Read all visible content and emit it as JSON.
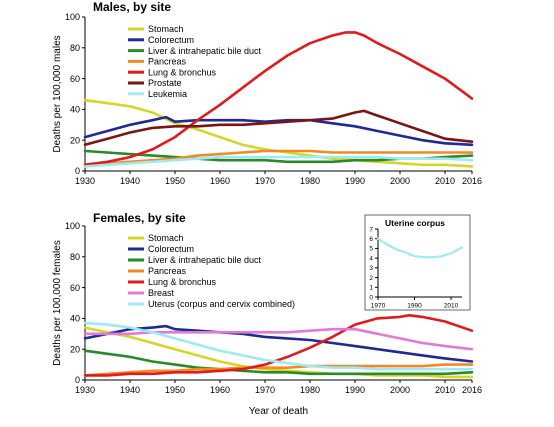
{
  "chart_data": [
    {
      "type": "line",
      "title": "Males, by site",
      "ylabel": "Deaths per 100,000 males",
      "xlabel": "",
      "xlim": [
        1930,
        2016
      ],
      "ylim": [
        0,
        100
      ],
      "xticks": [
        "1930",
        "1940",
        "1950",
        "1960",
        "1970",
        "1980",
        "1990",
        "2000",
        "2010",
        "2016"
      ],
      "yticks": [
        "0",
        "20",
        "40",
        "60",
        "80",
        "100"
      ],
      "legend_position": "top-left",
      "grid": false,
      "series": [
        {
          "name": "Stomach",
          "color": "#d8d42a",
          "x": [
            1930,
            1935,
            1940,
            1945,
            1950,
            1955,
            1960,
            1965,
            1970,
            1975,
            1980,
            1985,
            1990,
            1995,
            2000,
            2005,
            2010,
            2016
          ],
          "y": [
            46,
            44,
            42,
            38,
            31,
            27,
            22,
            17,
            14,
            12,
            10,
            8,
            7,
            6,
            5,
            4,
            4,
            3
          ]
        },
        {
          "name": "Colorectum",
          "color": "#1f2a96",
          "x": [
            1930,
            1935,
            1940,
            1945,
            1948,
            1950,
            1955,
            1960,
            1965,
            1970,
            1975,
            1980,
            1985,
            1990,
            1995,
            2000,
            2005,
            2010,
            2016
          ],
          "y": [
            22,
            26,
            30,
            33,
            35,
            32,
            33,
            33,
            33,
            32,
            33,
            33,
            31,
            29,
            26,
            23,
            20,
            18,
            17
          ]
        },
        {
          "name": "Liver & intrahepatic bile duct",
          "color": "#2a8a2a",
          "x": [
            1930,
            1935,
            1940,
            1945,
            1950,
            1955,
            1960,
            1965,
            1970,
            1975,
            1980,
            1985,
            1990,
            1995,
            2000,
            2005,
            2010,
            2016
          ],
          "y": [
            13,
            12,
            11,
            10,
            9,
            8,
            7,
            7,
            7,
            6,
            6,
            6,
            7,
            7,
            8,
            8,
            9,
            10
          ]
        },
        {
          "name": "Pancreas",
          "color": "#f08a24",
          "x": [
            1930,
            1935,
            1940,
            1945,
            1950,
            1955,
            1960,
            1965,
            1970,
            1975,
            1980,
            1985,
            1990,
            1995,
            2000,
            2005,
            2010,
            2016
          ],
          "y": [
            4,
            5,
            6,
            7,
            8,
            10,
            11,
            12,
            13,
            13,
            13,
            12,
            12,
            12,
            12,
            12,
            12,
            12
          ]
        },
        {
          "name": "Lung & bronchus",
          "color": "#e01b1b",
          "x": [
            1930,
            1935,
            1940,
            1945,
            1950,
            1955,
            1960,
            1965,
            1970,
            1975,
            1980,
            1985,
            1988,
            1990,
            1992,
            1995,
            2000,
            2005,
            2010,
            2016
          ],
          "y": [
            4,
            6,
            9,
            14,
            22,
            33,
            43,
            54,
            65,
            75,
            83,
            88,
            90,
            90,
            88,
            83,
            76,
            68,
            60,
            47
          ]
        },
        {
          "name": "Prostate",
          "color": "#7a1515",
          "x": [
            1930,
            1935,
            1940,
            1945,
            1950,
            1955,
            1960,
            1965,
            1970,
            1975,
            1980,
            1985,
            1990,
            1992,
            1995,
            2000,
            2005,
            2010,
            2016
          ],
          "y": [
            17,
            21,
            25,
            28,
            29,
            29,
            30,
            30,
            31,
            32,
            33,
            34,
            38,
            39,
            36,
            31,
            26,
            21,
            19
          ]
        },
        {
          "name": "Leukemia",
          "color": "#9eeaf2",
          "x": [
            1930,
            1935,
            1940,
            1945,
            1950,
            1955,
            1960,
            1965,
            1970,
            1975,
            1980,
            1985,
            1990,
            1995,
            2000,
            2005,
            2010,
            2016
          ],
          "y": [
            3,
            4,
            5,
            6,
            7,
            8,
            9,
            9,
            9,
            9,
            9,
            9,
            9,
            9,
            8,
            8,
            8,
            7
          ]
        }
      ]
    },
    {
      "type": "line",
      "title": "Females, by site",
      "ylabel": "Deaths per 100,000 females",
      "xlabel": "Year of death",
      "xlim": [
        1930,
        2016
      ],
      "ylim": [
        0,
        100
      ],
      "xticks": [
        "1930",
        "1940",
        "1950",
        "1960",
        "1970",
        "1980",
        "1990",
        "2000",
        "2010",
        "2016"
      ],
      "yticks": [
        "0",
        "20",
        "40",
        "60",
        "80",
        "100"
      ],
      "legend_position": "top-left",
      "grid": false,
      "series": [
        {
          "name": "Stomach",
          "color": "#d8d42a",
          "x": [
            1930,
            1935,
            1940,
            1945,
            1950,
            1955,
            1960,
            1965,
            1970,
            1975,
            1980,
            1985,
            1990,
            1995,
            2000,
            2005,
            2010,
            2016
          ],
          "y": [
            34,
            31,
            28,
            24,
            20,
            16,
            12,
            9,
            7,
            6,
            5,
            4,
            4,
            3,
            3,
            3,
            2,
            2
          ]
        },
        {
          "name": "Colorectum",
          "color": "#1f2a96",
          "x": [
            1930,
            1935,
            1940,
            1945,
            1948,
            1950,
            1955,
            1960,
            1965,
            1970,
            1975,
            1980,
            1985,
            1990,
            1995,
            2000,
            2005,
            2010,
            2016
          ],
          "y": [
            27,
            30,
            33,
            34,
            35,
            33,
            32,
            31,
            30,
            28,
            27,
            26,
            24,
            22,
            20,
            18,
            16,
            14,
            12
          ]
        },
        {
          "name": "Liver & intrahepatic bile duct",
          "color": "#2a8a2a",
          "x": [
            1930,
            1935,
            1940,
            1945,
            1950,
            1955,
            1960,
            1965,
            1970,
            1975,
            1980,
            1985,
            1990,
            1995,
            2000,
            2005,
            2010,
            2016
          ],
          "y": [
            19,
            17,
            15,
            12,
            10,
            8,
            7,
            6,
            5,
            5,
            4,
            4,
            4,
            4,
            4,
            4,
            4,
            5
          ]
        },
        {
          "name": "Pancreas",
          "color": "#f08a24",
          "x": [
            1930,
            1935,
            1940,
            1945,
            1950,
            1955,
            1960,
            1965,
            1970,
            1975,
            1980,
            1985,
            1990,
            1995,
            2000,
            2005,
            2010,
            2016
          ],
          "y": [
            3,
            4,
            5,
            6,
            6,
            7,
            7,
            8,
            8,
            8,
            9,
            9,
            9,
            9,
            9,
            9,
            10,
            10
          ]
        },
        {
          "name": "Lung & bronchus",
          "color": "#e01b1b",
          "x": [
            1930,
            1935,
            1940,
            1945,
            1950,
            1955,
            1960,
            1965,
            1970,
            1975,
            1980,
            1985,
            1990,
            1995,
            2000,
            2002,
            2005,
            2010,
            2016
          ],
          "y": [
            3,
            3,
            4,
            4,
            5,
            5,
            6,
            7,
            10,
            15,
            21,
            28,
            36,
            40,
            41,
            42,
            41,
            38,
            32
          ]
        },
        {
          "name": "Breast",
          "color": "#e07ad8",
          "x": [
            1930,
            1935,
            1940,
            1945,
            1950,
            1955,
            1960,
            1965,
            1970,
            1975,
            1980,
            1985,
            1990,
            1995,
            2000,
            2005,
            2010,
            2016
          ],
          "y": [
            30,
            30,
            30,
            31,
            31,
            31,
            31,
            31,
            31,
            31,
            32,
            33,
            33,
            30,
            27,
            24,
            22,
            20
          ]
        },
        {
          "name": "Uterus (corpus and cervix combined)",
          "color": "#9eeaf2",
          "x": [
            1930,
            1935,
            1940,
            1945,
            1950,
            1955,
            1960,
            1965,
            1970,
            1975,
            1980,
            1985,
            1990,
            1995,
            2000,
            2005,
            2010,
            2016
          ],
          "y": [
            37,
            36,
            34,
            31,
            27,
            23,
            19,
            16,
            13,
            11,
            9,
            8,
            8,
            7,
            7,
            7,
            7,
            7
          ]
        }
      ]
    },
    {
      "type": "line",
      "title": "Uterine corpus",
      "ylabel": "",
      "xlabel": "",
      "xlim": [
        1970,
        2016
      ],
      "ylim": [
        0,
        7
      ],
      "xticks": [
        "1970",
        "1990",
        "2010"
      ],
      "yticks": [
        "0",
        "1",
        "2",
        "3",
        "4",
        "5",
        "6",
        "7"
      ],
      "grid": false,
      "series": [
        {
          "color": "#9eeaf2",
          "x": [
            1970,
            1975,
            1980,
            1985,
            1990,
            1995,
            2000,
            2005,
            2010,
            2016
          ],
          "y": [
            6.0,
            5.4,
            4.9,
            4.6,
            4.2,
            4.1,
            4.1,
            4.2,
            4.5,
            5.1
          ]
        }
      ]
    }
  ]
}
